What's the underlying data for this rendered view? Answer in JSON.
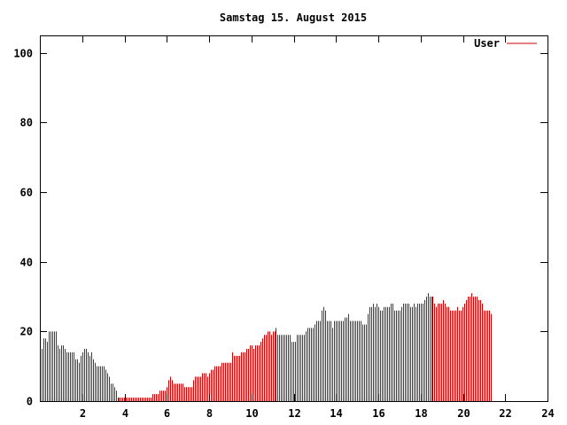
{
  "chart_data": {
    "type": "bar",
    "title": "Samstag 15. August 2015",
    "xlabel": "",
    "ylabel": "",
    "xlim": [
      0,
      24
    ],
    "ylim": [
      0,
      105
    ],
    "x_ticks": [
      2,
      4,
      6,
      8,
      10,
      12,
      14,
      16,
      18,
      20,
      22,
      24
    ],
    "y_ticks": [
      0,
      20,
      40,
      60,
      80,
      100
    ],
    "grid": false,
    "legend": "top-right",
    "bar_interval_hours": 0.0833,
    "series": [
      {
        "name": "User",
        "color": "#cc0000",
        "values": [
          15,
          18,
          18,
          17,
          20,
          20,
          20,
          20,
          20,
          16,
          15,
          16,
          16,
          15,
          14,
          14,
          14,
          14,
          14,
          12,
          12,
          11,
          13,
          14,
          15,
          15,
          14,
          13,
          14,
          12,
          11,
          10,
          10,
          10,
          10,
          10,
          9,
          8,
          7,
          5,
          5,
          4,
          3,
          1,
          1,
          1,
          1,
          1,
          1,
          1,
          1,
          1,
          1,
          1,
          1,
          1,
          1,
          1,
          1,
          1,
          1,
          1,
          1,
          2,
          2,
          2,
          2,
          3,
          3,
          3,
          3,
          4,
          6,
          7,
          6,
          5,
          5,
          5,
          5,
          5,
          5,
          4,
          4,
          4,
          4,
          4,
          6,
          7,
          7,
          7,
          7,
          8,
          8,
          8,
          7,
          8,
          9,
          9,
          10,
          10,
          10,
          10,
          11,
          11,
          11,
          11,
          11,
          11,
          14,
          13,
          13,
          13,
          13,
          14,
          14,
          14,
          15,
          15,
          16,
          16,
          15,
          16,
          16,
          16,
          17,
          18,
          19,
          19,
          20,
          20,
          19,
          20,
          20,
          21,
          19,
          19,
          19,
          19,
          19,
          19,
          19,
          19,
          17,
          17,
          17,
          19,
          19,
          19,
          19,
          19,
          20,
          21,
          21,
          21,
          21,
          22,
          23,
          23,
          23,
          26,
          27,
          26,
          23,
          23,
          23,
          21,
          23,
          23,
          23,
          23,
          23,
          23,
          24,
          24,
          25,
          23,
          23,
          23,
          23,
          23,
          23,
          23,
          22,
          22,
          22,
          25,
          27,
          27,
          28,
          27,
          28,
          27,
          26,
          26,
          27,
          27,
          27,
          27,
          28,
          28,
          26,
          26,
          26,
          26,
          27,
          28,
          28,
          28,
          28,
          27,
          27,
          28,
          27,
          28,
          28,
          28,
          28,
          29,
          30,
          31,
          30,
          30,
          30,
          28,
          27,
          28,
          28,
          28,
          29,
          28,
          27,
          27,
          26,
          26,
          26,
          26,
          27,
          26,
          26,
          27,
          28,
          29,
          30,
          30,
          31,
          30,
          30,
          30,
          29,
          29,
          28,
          26,
          26,
          26,
          26,
          25
        ]
      }
    ]
  }
}
